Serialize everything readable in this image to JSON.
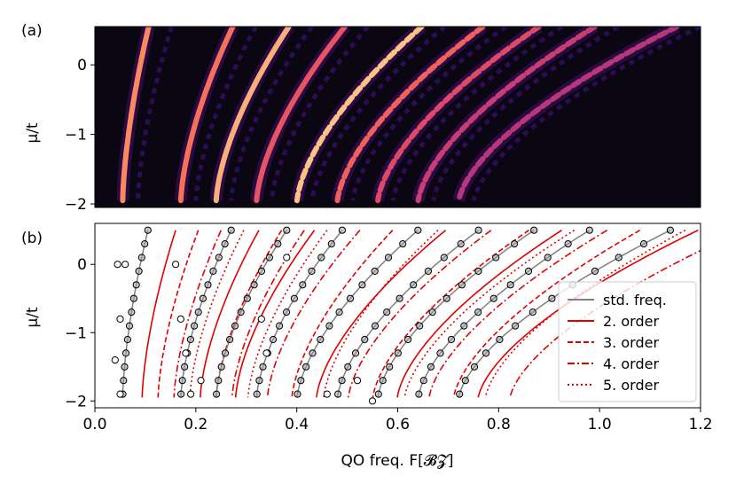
{
  "figure": {
    "panel_a_label": "(a)",
    "panel_b_label": "(b)"
  },
  "colors": {
    "std": "#808080",
    "order": "#e00000",
    "marker_edge": "#000000"
  },
  "chart_data": [
    {
      "type": "heatmap",
      "panel": "(a)",
      "title": "",
      "xlabel": "",
      "ylabel": "μ/t",
      "xlim": [
        0.0,
        1.2
      ],
      "ylim": [
        -2.05,
        0.55
      ],
      "yticks": [
        0,
        -1,
        -2
      ],
      "colormap": "magma",
      "description_note": "intensity ridges along quantum-oscillation frequency branches"
    },
    {
      "type": "scatter",
      "panel": "(b)",
      "title": "",
      "xlabel": "QO freq. F[𝓑𝓩]",
      "ylabel": "μ/t",
      "xlim": [
        0.0,
        1.2
      ],
      "ylim": [
        -2.1,
        0.6
      ],
      "xticks": [
        "0.0",
        "0.2",
        "0.4",
        "0.6",
        "0.8",
        "1.0",
        "1.2"
      ],
      "yticks": [
        "0",
        "−1",
        "−2"
      ],
      "mu_samples": [
        0.5,
        0.3,
        0.1,
        -0.1,
        -0.3,
        -0.5,
        -0.7,
        -0.9,
        -1.1,
        -1.3,
        -1.5,
        -1.7,
        -1.9
      ],
      "branches": [
        {
          "name": "std. freq.",
          "x_at_mu_top": 0.105,
          "x_at_mu_bottom": 0.055
        },
        {
          "name": "std. freq.",
          "x_at_mu_top": 0.27,
          "x_at_mu_bottom": 0.17
        },
        {
          "name": "std. freq.",
          "x_at_mu_top": 0.38,
          "x_at_mu_bottom": 0.24
        },
        {
          "name": "std. freq.",
          "x_at_mu_top": 0.49,
          "x_at_mu_bottom": 0.32
        },
        {
          "name": "std. freq.",
          "x_at_mu_top": 0.64,
          "x_at_mu_bottom": 0.4
        },
        {
          "name": "std. freq.",
          "x_at_mu_top": 0.76,
          "x_at_mu_bottom": 0.48
        },
        {
          "name": "std. freq.",
          "x_at_mu_top": 0.87,
          "x_at_mu_bottom": 0.56
        },
        {
          "name": "std. freq.",
          "x_at_mu_top": 0.98,
          "x_at_mu_bottom": 0.64
        },
        {
          "name": "std. freq.",
          "x_at_mu_top": 1.14,
          "x_at_mu_bottom": 0.72
        }
      ],
      "legend": {
        "location": "lower-right",
        "entries": [
          {
            "label": "std. freq.",
            "style": "solid",
            "color": "#808080"
          },
          {
            "label": "2. order",
            "style": "solid",
            "color": "#e00000"
          },
          {
            "label": "3. order",
            "style": "dashed",
            "color": "#e00000"
          },
          {
            "label": "4. order",
            "style": "dashdot",
            "color": "#e00000"
          },
          {
            "label": "5. order",
            "style": "dotted",
            "color": "#e00000"
          }
        ]
      }
    }
  ]
}
